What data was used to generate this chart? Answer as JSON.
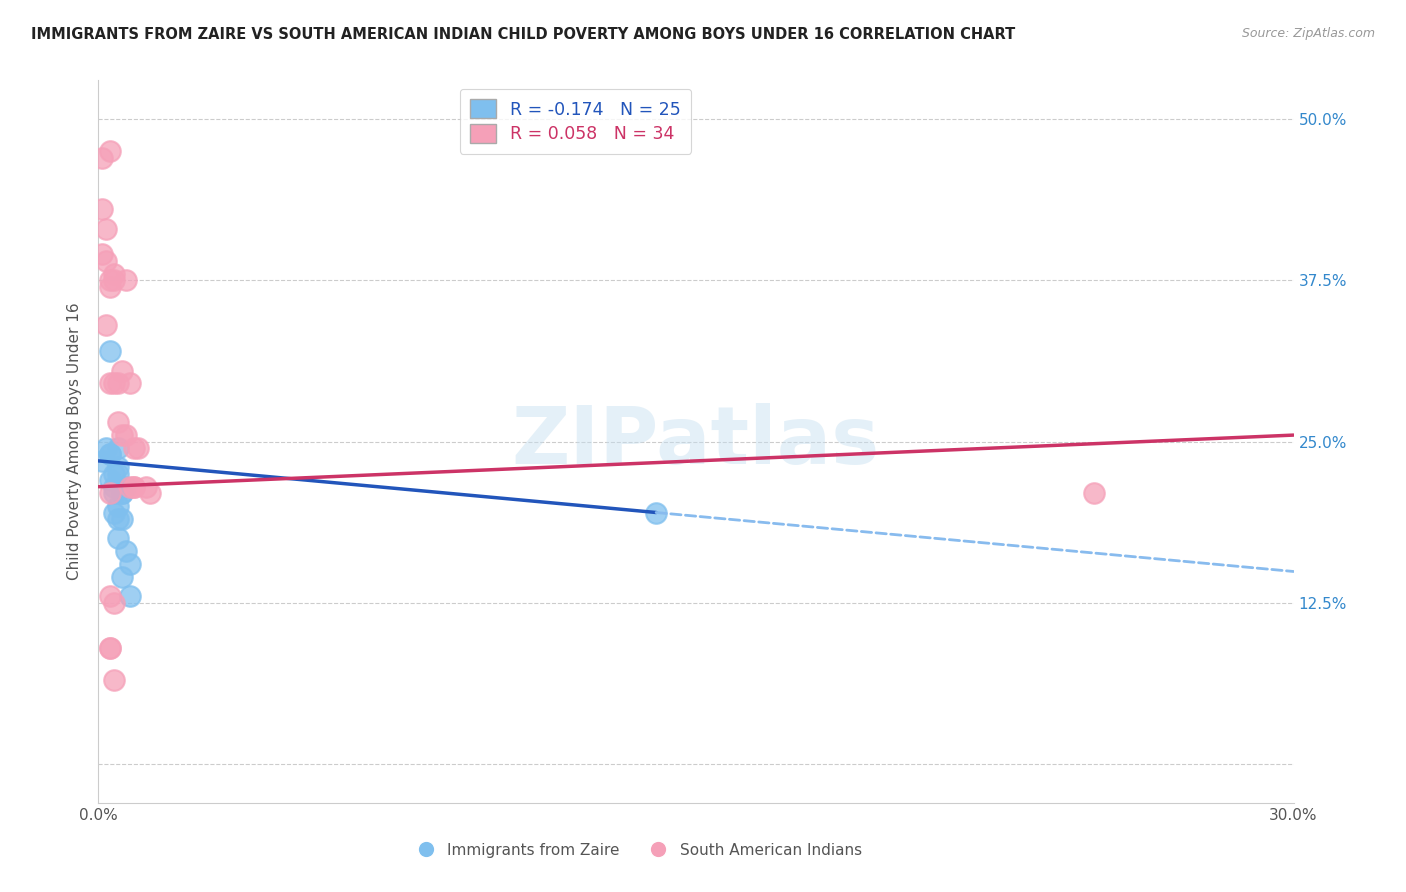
{
  "title": "IMMIGRANTS FROM ZAIRE VS SOUTH AMERICAN INDIAN CHILD POVERTY AMONG BOYS UNDER 16 CORRELATION CHART",
  "source": "Source: ZipAtlas.com",
  "ylabel": "Child Poverty Among Boys Under 16",
  "xlim": [
    0.0,
    0.3
  ],
  "ylim": [
    -0.03,
    0.53
  ],
  "ytick_positions": [
    0.0,
    0.125,
    0.25,
    0.375,
    0.5
  ],
  "ytick_labels_right": [
    "",
    "12.5%",
    "25.0%",
    "37.5%",
    "50.0%"
  ],
  "xtick_positions": [
    0.0,
    0.06,
    0.12,
    0.18,
    0.24,
    0.3
  ],
  "xtick_labels": [
    "0.0%",
    "",
    "",
    "",
    "",
    "30.0%"
  ],
  "legend1_label": "R = -0.174   N = 25",
  "legend2_label": "R = 0.058   N = 34",
  "blue_color": "#7fbfee",
  "pink_color": "#f5a0b8",
  "trendline_blue_solid": "#2255bb",
  "trendline_blue_dash": "#88bbee",
  "trendline_pink": "#cc3366",
  "watermark": "ZIPatlas",
  "blue_trend_x0": 0.0,
  "blue_trend_y0": 0.235,
  "blue_trend_x1": 0.14,
  "blue_trend_y1": 0.195,
  "blue_trend_xend": 0.3,
  "pink_trend_x0": 0.0,
  "pink_trend_y0": 0.215,
  "pink_trend_x1": 0.3,
  "pink_trend_y1": 0.255,
  "blue_x": [
    0.001,
    0.002,
    0.003,
    0.003,
    0.003,
    0.004,
    0.004,
    0.004,
    0.004,
    0.005,
    0.005,
    0.005,
    0.005,
    0.005,
    0.005,
    0.006,
    0.006,
    0.006,
    0.006,
    0.007,
    0.007,
    0.008,
    0.008,
    0.14,
    0.003
  ],
  "blue_y": [
    0.235,
    0.245,
    0.24,
    0.24,
    0.22,
    0.225,
    0.215,
    0.21,
    0.195,
    0.245,
    0.23,
    0.225,
    0.2,
    0.19,
    0.175,
    0.21,
    0.21,
    0.19,
    0.145,
    0.215,
    0.165,
    0.155,
    0.13,
    0.195,
    0.32
  ],
  "pink_x": [
    0.001,
    0.001,
    0.001,
    0.002,
    0.002,
    0.002,
    0.003,
    0.003,
    0.003,
    0.003,
    0.003,
    0.004,
    0.004,
    0.004,
    0.005,
    0.005,
    0.006,
    0.006,
    0.007,
    0.007,
    0.008,
    0.008,
    0.009,
    0.009,
    0.009,
    0.01,
    0.012,
    0.013,
    0.003,
    0.004,
    0.003,
    0.003,
    0.25,
    0.004
  ],
  "pink_y": [
    0.47,
    0.43,
    0.395,
    0.415,
    0.39,
    0.34,
    0.475,
    0.375,
    0.37,
    0.295,
    0.21,
    0.38,
    0.375,
    0.295,
    0.295,
    0.265,
    0.305,
    0.255,
    0.255,
    0.375,
    0.295,
    0.215,
    0.215,
    0.245,
    0.215,
    0.245,
    0.215,
    0.21,
    0.13,
    0.125,
    0.09,
    0.09,
    0.21,
    0.065
  ]
}
